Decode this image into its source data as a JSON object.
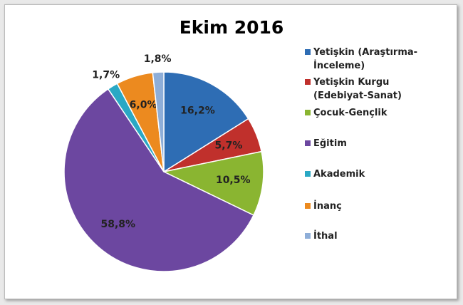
{
  "chart_data": {
    "type": "pie",
    "title": "Ekim 2016",
    "categories": [
      "Yetişkin (Araştırma-İnceleme)",
      "Yetişkin Kurgu (Edebiyat-Sanat)",
      "Çocuk-Gençlik",
      "Eğitim",
      "Akademik",
      "İnanç",
      "İthal"
    ],
    "values": [
      16.2,
      5.7,
      10.5,
      58.8,
      1.7,
      6.0,
      1.8
    ],
    "value_labels": [
      "16,2%",
      "5,7%",
      "10,5%",
      "58,8%",
      "1,7%",
      "6,0%",
      "1,8%"
    ],
    "colors": [
      "#2e6db4",
      "#c0302c",
      "#8ab531",
      "#6c47a0",
      "#2aa8c4",
      "#ec8a1f",
      "#8eaed8"
    ],
    "legend": "right"
  }
}
